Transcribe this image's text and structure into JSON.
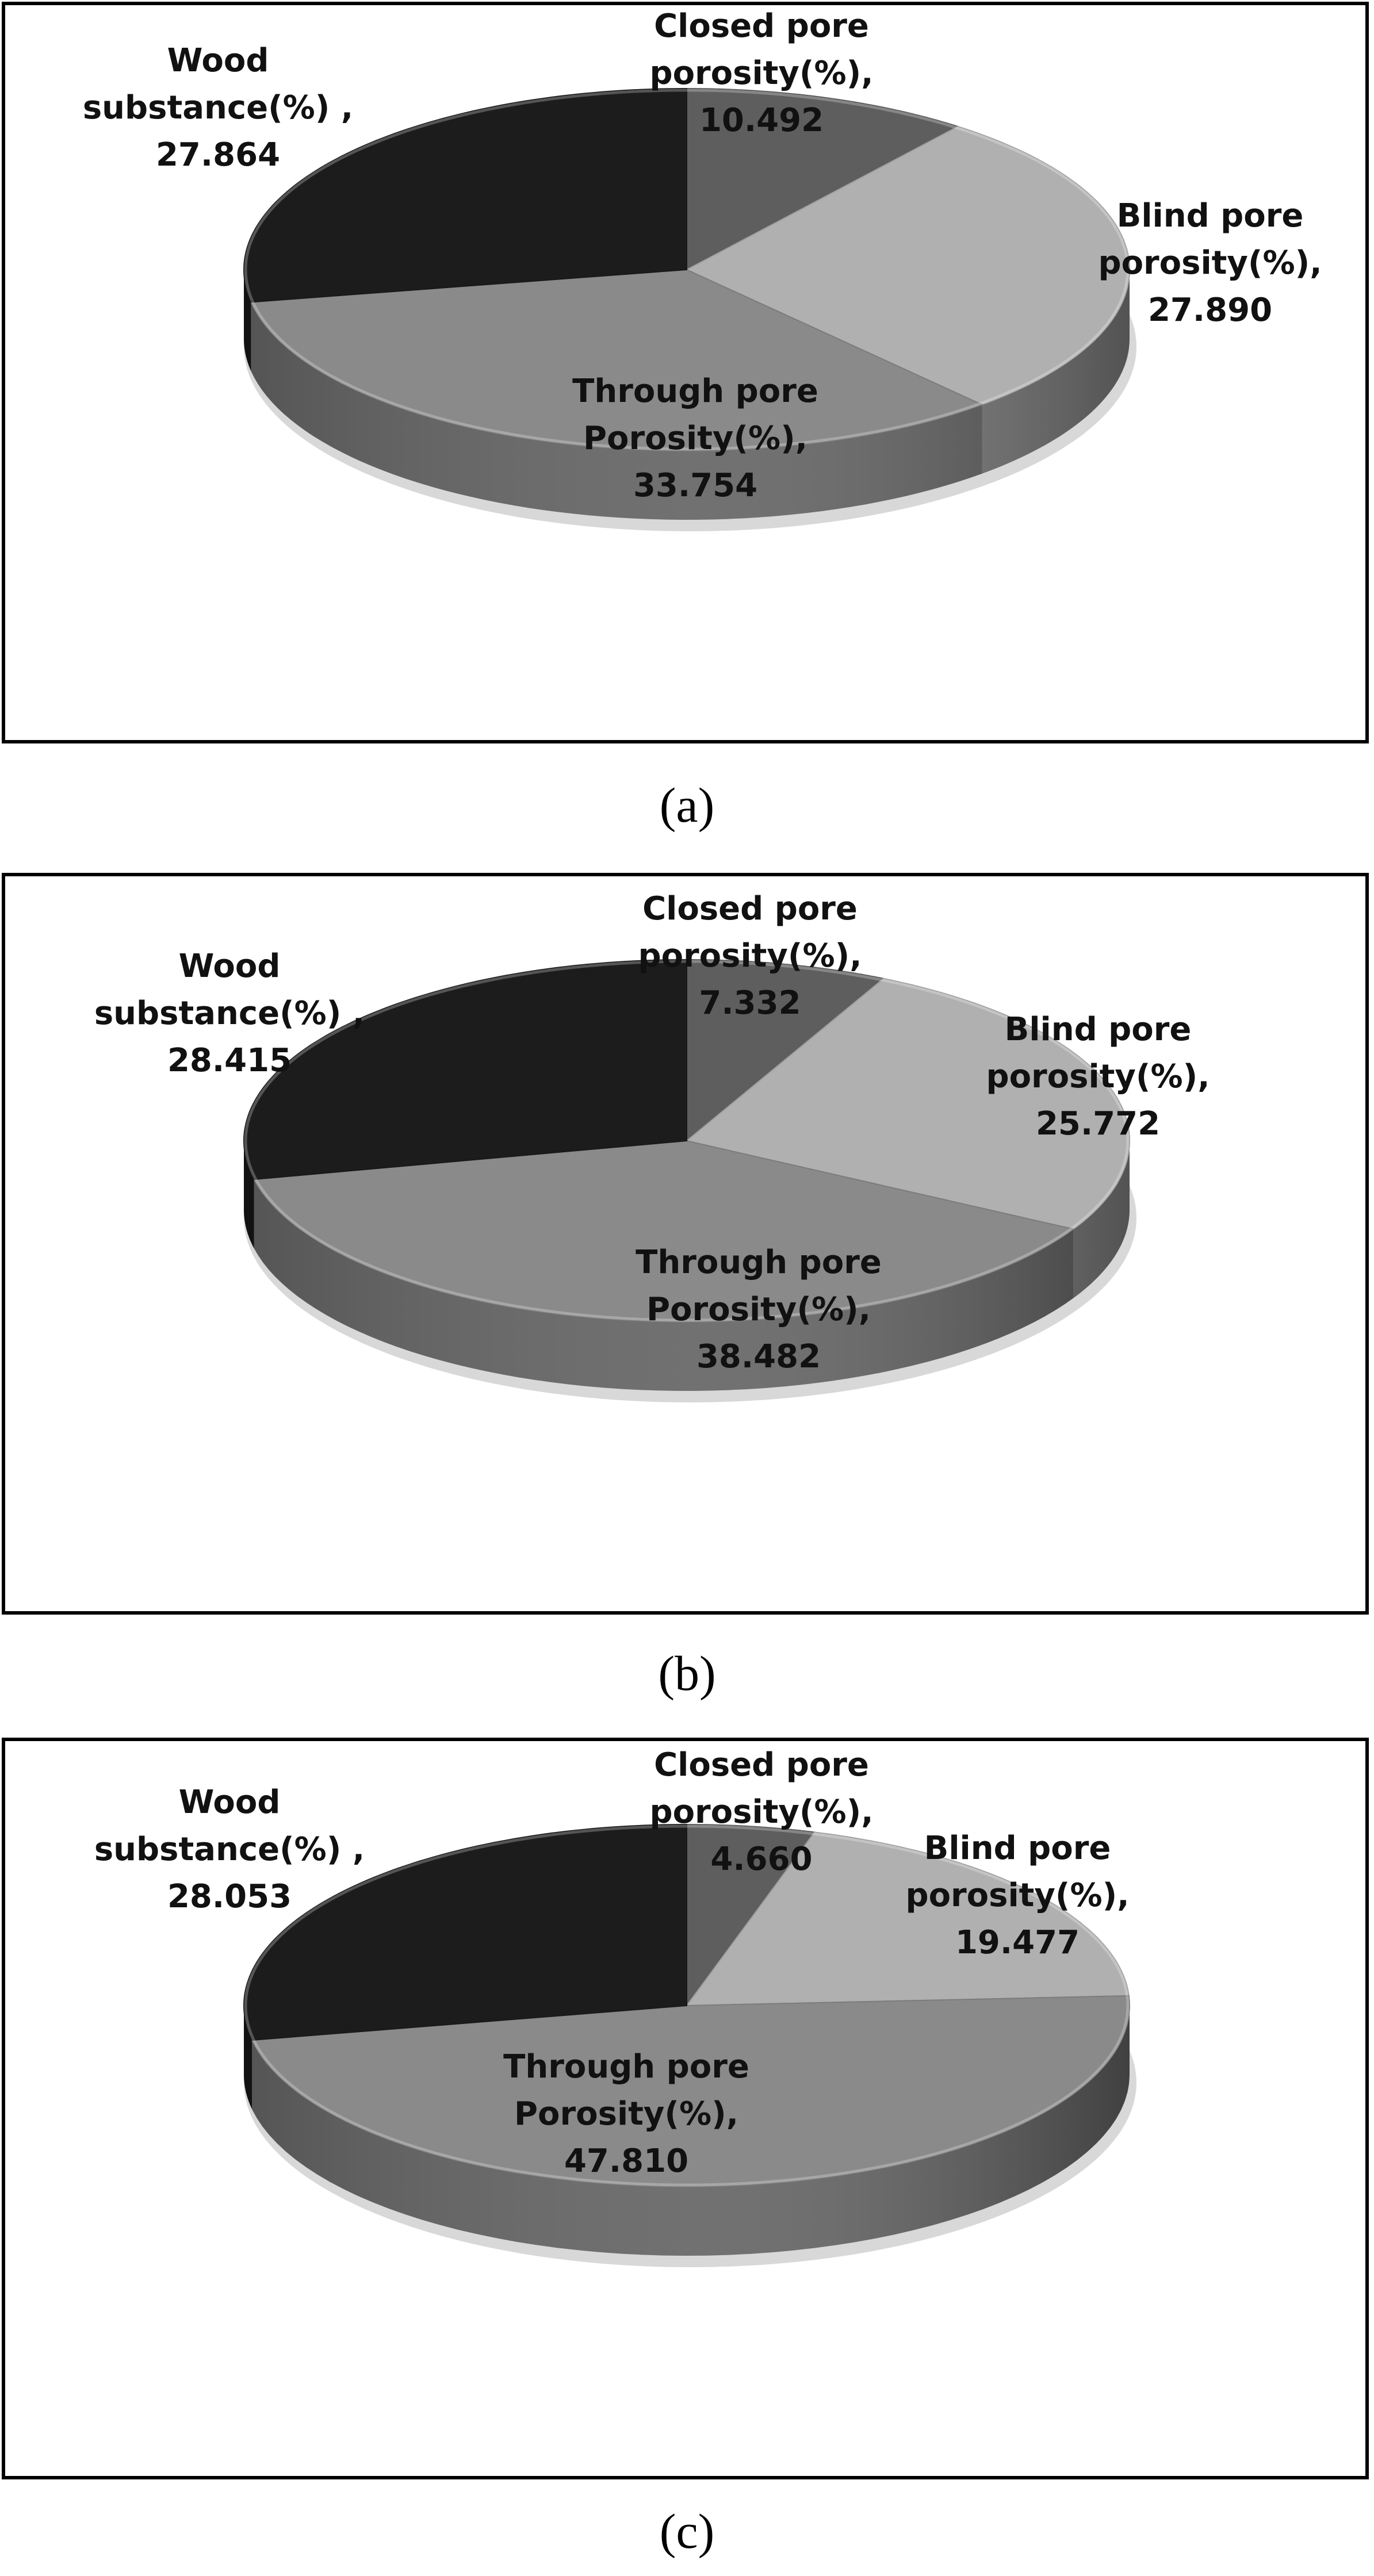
{
  "chart_data": [
    {
      "type": "pie",
      "caption": "(a)",
      "slices": [
        {
          "lines": [
            "Closed pore",
            "porosity(%),"
          ],
          "number": "10.492",
          "value": 10.492,
          "color": "#5e5e5e"
        },
        {
          "lines": [
            "Blind pore",
            "porosity(%),"
          ],
          "number": "27.890",
          "value": 27.89,
          "color": "#b0b0b0"
        },
        {
          "lines": [
            "Through pore",
            "Porosity(%),"
          ],
          "number": "33.754",
          "value": 33.754,
          "color": "#8a8a8a"
        },
        {
          "lines": [
            "Wood",
            "substance(%)  ,"
          ],
          "number": "27.864",
          "value": 27.864,
          "color": "#1c1c1c"
        }
      ]
    },
    {
      "type": "pie",
      "caption": "(b)",
      "slices": [
        {
          "lines": [
            "Closed pore",
            "porosity(%),"
          ],
          "number": "7.332",
          "value": 7.332,
          "color": "#5e5e5e"
        },
        {
          "lines": [
            "Blind pore",
            "porosity(%),"
          ],
          "number": "25.772",
          "value": 25.772,
          "color": "#b0b0b0"
        },
        {
          "lines": [
            "Through pore",
            "Porosity(%),"
          ],
          "number": "38.482",
          "value": 38.482,
          "color": "#8a8a8a"
        },
        {
          "lines": [
            "Wood",
            "substance(%)  ,"
          ],
          "number": "28.415",
          "value": 28.415,
          "color": "#1c1c1c"
        }
      ]
    },
    {
      "type": "pie",
      "caption": "(c)",
      "slices": [
        {
          "lines": [
            "Closed pore",
            "porosity(%),"
          ],
          "number": "4.660",
          "value": 4.66,
          "color": "#5e5e5e"
        },
        {
          "lines": [
            "Blind pore",
            "porosity(%),"
          ],
          "number": "19.477",
          "value": 19.477,
          "color": "#b0b0b0"
        },
        {
          "lines": [
            "Through pore",
            "Porosity(%),"
          ],
          "number": "47.810",
          "value": 47.81,
          "color": "#8a8a8a"
        },
        {
          "lines": [
            "Wood",
            "substance(%)  ,"
          ],
          "number": "28.053",
          "value": 28.053,
          "color": "#1c1c1c"
        }
      ]
    }
  ]
}
